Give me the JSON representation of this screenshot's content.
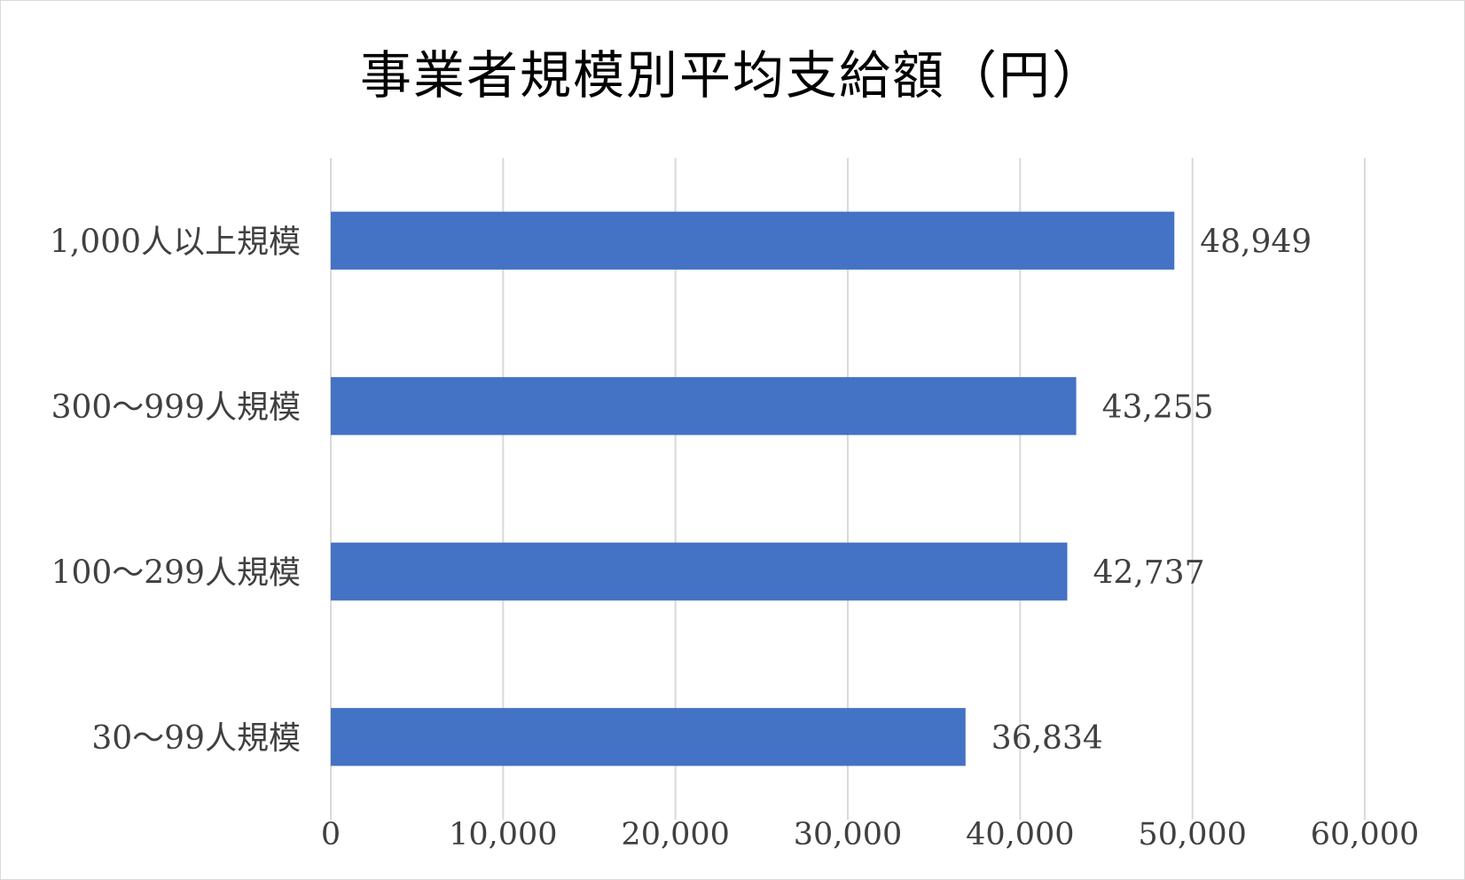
{
  "chart_data": {
    "type": "bar",
    "orientation": "horizontal",
    "title": "事業者規模別平均支給額（円）",
    "xlabel": "",
    "ylabel": "",
    "categories": [
      "1,000人以上規模",
      "300～999人規模",
      "100～299人規模",
      "30～99人規模"
    ],
    "values": [
      48949,
      43255,
      42737,
      36834
    ],
    "value_labels": [
      "48,949",
      "43,255",
      "42,737",
      "36,834"
    ],
    "xlim": [
      0,
      60000
    ],
    "x_ticks": [
      0,
      10000,
      20000,
      30000,
      40000,
      50000,
      60000
    ],
    "x_tick_labels": [
      "0",
      "10,000",
      "20,000",
      "30,000",
      "40,000",
      "50,000",
      "60,000"
    ],
    "grid": "vertical",
    "legend": "none",
    "bar_color": "#4472C4",
    "grid_color": "#d9d9d9",
    "text_color": "#404040"
  }
}
